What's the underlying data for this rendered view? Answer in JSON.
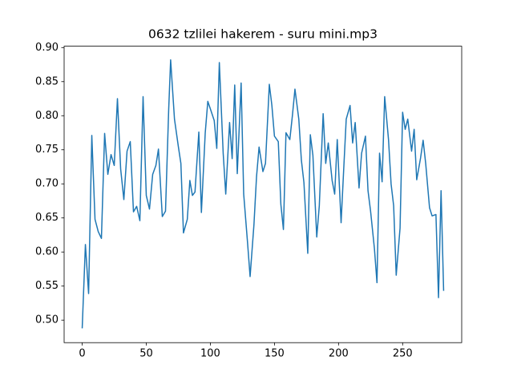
{
  "chart_data": {
    "type": "line",
    "title": "0632 tzlilei hakerem - suru mini.mp3",
    "x": [
      0,
      2.5,
      5,
      7.5,
      10,
      12.5,
      15,
      17.5,
      20,
      22.5,
      25,
      27.5,
      30,
      32.5,
      35,
      37.5,
      40,
      42.5,
      45,
      47.5,
      50,
      52.5,
      55,
      57.5,
      59.5,
      62.5,
      65,
      67.5,
      69,
      72,
      75,
      77,
      79,
      82,
      84,
      86,
      88,
      91,
      93,
      96,
      98,
      100,
      103,
      105,
      107,
      110,
      112,
      115,
      117,
      119,
      121,
      124,
      126,
      129,
      131,
      134,
      136,
      138,
      141,
      143,
      146,
      148,
      150,
      153,
      155,
      157,
      159,
      162,
      164,
      166,
      169,
      171,
      173,
      176,
      178,
      180,
      183,
      185,
      188,
      190,
      192,
      195,
      197,
      199,
      202,
      204,
      206,
      209,
      211,
      213,
      216,
      218,
      221,
      223,
      225,
      228,
      230,
      232,
      234,
      236,
      239,
      241,
      243,
      245,
      248,
      250,
      252,
      254,
      257,
      259,
      261,
      264,
      266,
      268,
      271,
      273,
      276,
      278,
      280,
      282
    ],
    "values": [
      0.488,
      0.611,
      0.539,
      0.771,
      0.648,
      0.63,
      0.62,
      0.774,
      0.714,
      0.743,
      0.727,
      0.825,
      0.722,
      0.677,
      0.748,
      0.762,
      0.659,
      0.667,
      0.646,
      0.828,
      0.683,
      0.663,
      0.714,
      0.727,
      0.751,
      0.652,
      0.66,
      0.81,
      0.882,
      0.795,
      0.755,
      0.73,
      0.628,
      0.648,
      0.705,
      0.683,
      0.688,
      0.776,
      0.658,
      0.775,
      0.821,
      0.81,
      0.793,
      0.752,
      0.878,
      0.745,
      0.685,
      0.79,
      0.737,
      0.845,
      0.715,
      0.848,
      0.685,
      0.614,
      0.564,
      0.64,
      0.71,
      0.754,
      0.718,
      0.73,
      0.846,
      0.815,
      0.77,
      0.762,
      0.67,
      0.633,
      0.775,
      0.765,
      0.8,
      0.839,
      0.795,
      0.735,
      0.702,
      0.598,
      0.772,
      0.742,
      0.622,
      0.668,
      0.803,
      0.73,
      0.76,
      0.705,
      0.685,
      0.765,
      0.643,
      0.72,
      0.795,
      0.815,
      0.76,
      0.79,
      0.694,
      0.745,
      0.77,
      0.69,
      0.66,
      0.605,
      0.555,
      0.745,
      0.703,
      0.828,
      0.765,
      0.7,
      0.668,
      0.566,
      0.635,
      0.805,
      0.78,
      0.795,
      0.748,
      0.78,
      0.706,
      0.738,
      0.764,
      0.73,
      0.665,
      0.653,
      0.655,
      0.533,
      0.69,
      0.543
    ],
    "color": "#1f77b4",
    "xlim": [
      -14.1,
      296.1
    ],
    "xticks": [
      0,
      50,
      100,
      150,
      200,
      250
    ],
    "ylim": [
      0.467,
      0.902
    ],
    "yticks": [
      {
        "value": 0.5,
        "label": "0.50"
      },
      {
        "value": 0.55,
        "label": "0.55"
      },
      {
        "value": 0.6,
        "label": "0.60"
      },
      {
        "value": 0.65,
        "label": "0.65"
      },
      {
        "value": 0.7,
        "label": "0.70"
      },
      {
        "value": 0.75,
        "label": "0.75"
      },
      {
        "value": 0.8,
        "label": "0.80"
      },
      {
        "value": 0.85,
        "label": "0.85"
      },
      {
        "value": 0.9,
        "label": "0.90"
      }
    ]
  }
}
